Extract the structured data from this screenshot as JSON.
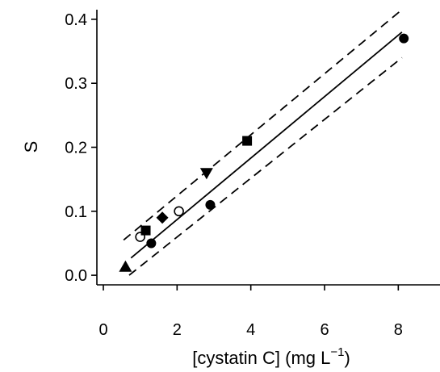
{
  "chart_data": {
    "type": "scatter",
    "xlabel": "[cystatin C] (mg L",
    "xlabel_sup": "−1",
    "xlabel_close": ")",
    "ylabel": "S",
    "xlim": [
      0,
      9
    ],
    "ylim": [
      -0.015,
      0.415
    ],
    "x_ticks": [
      0,
      2,
      4,
      6,
      8
    ],
    "y_ticks": [
      0.0,
      0.1,
      0.2,
      0.3,
      0.4
    ],
    "y_tick_labels": [
      "0.0",
      "0.1",
      "0.2",
      "0.3",
      "0.4"
    ],
    "grid": false,
    "series": [
      {
        "marker": "filled-circle",
        "points": [
          [
            1.3,
            0.05
          ],
          [
            2.9,
            0.11
          ],
          [
            8.15,
            0.37
          ]
        ]
      },
      {
        "marker": "open-circle",
        "points": [
          [
            1.0,
            0.06
          ],
          [
            2.05,
            0.1
          ]
        ]
      },
      {
        "marker": "filled-triangle-up",
        "points": [
          [
            0.6,
            0.013
          ]
        ]
      },
      {
        "marker": "filled-square",
        "points": [
          [
            1.15,
            0.07
          ],
          [
            3.9,
            0.21
          ]
        ]
      },
      {
        "marker": "filled-diamond",
        "points": [
          [
            1.6,
            0.09
          ]
        ]
      },
      {
        "marker": "filled-triangle-down",
        "points": [
          [
            2.8,
            0.16
          ]
        ]
      }
    ],
    "fit_line": {
      "x": [
        0.75,
        8.1
      ],
      "y": [
        0.027,
        0.38
      ]
    },
    "confidence_upper": {
      "x": [
        0.55,
        8.1
      ],
      "y": [
        0.055,
        0.415
      ]
    },
    "confidence_lower": {
      "x": [
        0.7,
        8.1
      ],
      "y": [
        0.0,
        0.34
      ]
    }
  }
}
